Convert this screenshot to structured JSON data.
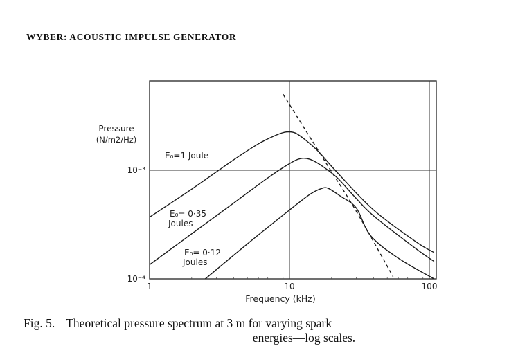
{
  "header": {
    "running_head": "WYBER: ACOUSTIC IMPULSE GENERATOR"
  },
  "caption": {
    "figure_number": "Fig. 5.",
    "text_line1": "Theoretical pressure spectrum at 3 m for varying spark",
    "text_line2": "energies—log scales."
  },
  "chart_data": {
    "type": "line",
    "x_scale": "log",
    "y_scale": "log",
    "xlabel": "Frequency (kHz)",
    "ylabel_line1": "Pressure",
    "ylabel_line2": "(N/m2/Hz)",
    "xlim": [
      1,
      130
    ],
    "ylim": [
      0.0001,
      0.005
    ],
    "x_ticks": [
      {
        "value": 1,
        "label": "1"
      },
      {
        "value": 10,
        "label": "10"
      },
      {
        "value": 100,
        "label": "100"
      }
    ],
    "y_ticks": [
      {
        "value": 0.0001,
        "label": "10⁻⁴"
      },
      {
        "value": 0.001,
        "label": "10⁻³"
      }
    ],
    "gridlines": {
      "x": [
        10,
        100
      ],
      "y": [
        0.001
      ]
    },
    "series": [
      {
        "name": "E₀=1 Joule",
        "points": [
          [
            1,
            0.00037
          ],
          [
            2,
            0.00067
          ],
          [
            4,
            0.00125
          ],
          [
            6,
            0.00175
          ],
          [
            8,
            0.0021
          ],
          [
            9.5,
            0.00225
          ],
          [
            11,
            0.0022
          ],
          [
            13,
            0.0019
          ],
          [
            16,
            0.0015
          ],
          [
            22,
            0.00095
          ],
          [
            40,
            0.00043
          ],
          [
            80,
            0.00022
          ],
          [
            108,
            0.000175
          ]
        ]
      },
      {
        "name": "E₀= 0·35 Joules",
        "points": [
          [
            1,
            0.000135
          ],
          [
            2,
            0.00026
          ],
          [
            4,
            0.0005
          ],
          [
            7,
            0.00085
          ],
          [
            10,
            0.00115
          ],
          [
            12,
            0.00128
          ],
          [
            14,
            0.00126
          ],
          [
            17,
            0.0011
          ],
          [
            22,
            0.00085
          ],
          [
            30,
            0.00055
          ],
          [
            40,
            0.00038
          ],
          [
            80,
            0.00019
          ],
          [
            108,
            0.000145
          ]
        ]
      },
      {
        "name": "E₀= 0·12 Joules",
        "points": [
          [
            2.5,
            0.0001
          ],
          [
            5,
            0.00021
          ],
          [
            10,
            0.00043
          ],
          [
            14,
            0.0006
          ],
          [
            17,
            0.00068
          ],
          [
            19,
            0.00068
          ],
          [
            23,
            0.00058
          ],
          [
            30,
            0.00045
          ],
          [
            38,
            0.00025
          ],
          [
            60,
            0.000155
          ],
          [
            108,
            0.0001
          ]
        ]
      },
      {
        "name": "asymptote",
        "style": "dashed",
        "points": [
          [
            9,
            0.005
          ],
          [
            18,
            0.0012
          ],
          [
            30,
            0.00042
          ],
          [
            55,
            0.000105
          ]
        ]
      }
    ],
    "annotations": [
      {
        "series": 0,
        "line1": "E₀=1 Joule",
        "line2": ""
      },
      {
        "series": 1,
        "line1": "E₀= 0·35",
        "line2": "Joules"
      },
      {
        "series": 2,
        "line1": "E₀= 0·12",
        "line2": "Joules"
      }
    ],
    "legend": "none"
  }
}
